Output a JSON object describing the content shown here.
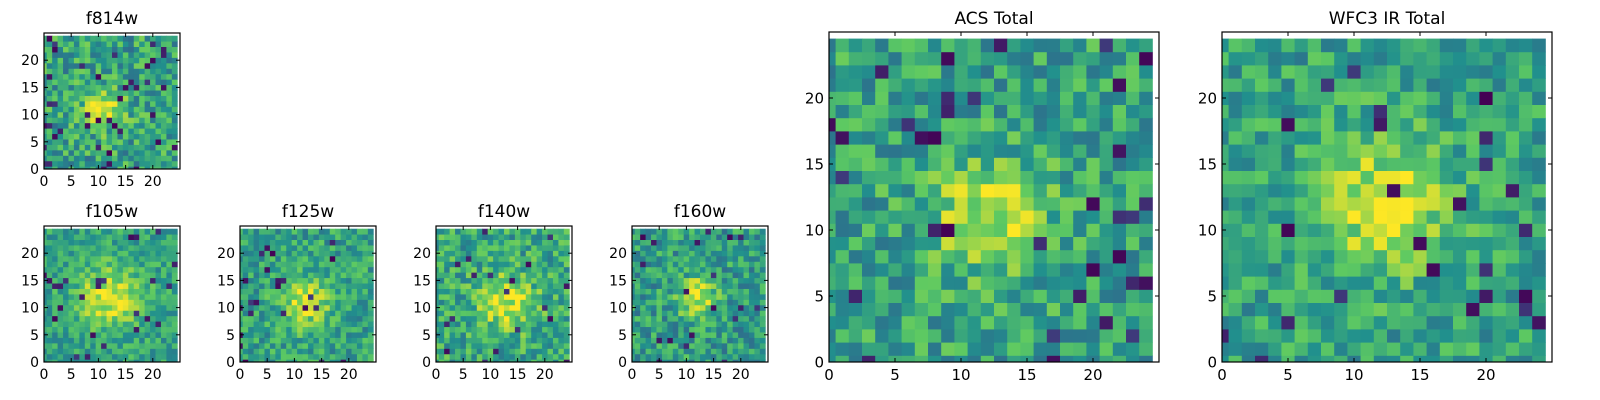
{
  "figure": {
    "colormap": "viridis",
    "colormap_stops": [
      "#440154",
      "#3b528b",
      "#21908d",
      "#5dc962",
      "#fde725"
    ]
  },
  "chart_data": [
    {
      "type": "heatmap",
      "id": "f814w",
      "title": "f814w",
      "xlabel": "",
      "ylabel": "",
      "xlim": [
        0,
        25
      ],
      "ylim": [
        0,
        25
      ],
      "grid_size": 25,
      "xticks": [
        "0",
        "5",
        "10",
        "15",
        "20"
      ],
      "yticks": [
        "0",
        "5",
        "10",
        "15",
        "20"
      ],
      "source": {
        "cx": 11,
        "cy": 11,
        "peak": 0.35,
        "sigma": 2.5,
        "base": 0.58,
        "noise": 0.22,
        "dark_freq": 0.06,
        "seed": 11
      }
    },
    {
      "type": "heatmap",
      "id": "f105w",
      "title": "f105w",
      "xlabel": "",
      "ylabel": "",
      "xlim": [
        0,
        25
      ],
      "ylim": [
        0,
        25
      ],
      "grid_size": 25,
      "xticks": [
        "0",
        "5",
        "10",
        "15",
        "20"
      ],
      "yticks": [
        "0",
        "5",
        "10",
        "15",
        "20"
      ],
      "source": {
        "cx": 12,
        "cy": 12,
        "peak": 0.38,
        "sigma": 4,
        "base": 0.58,
        "noise": 0.16,
        "dark_freq": 0.03,
        "seed": 23
      }
    },
    {
      "type": "heatmap",
      "id": "f125w",
      "title": "f125w",
      "xlabel": "",
      "ylabel": "",
      "xlim": [
        0,
        25
      ],
      "ylim": [
        0,
        25
      ],
      "grid_size": 25,
      "xticks": [
        "0",
        "5",
        "10",
        "15",
        "20"
      ],
      "yticks": [
        "0",
        "5",
        "10",
        "15",
        "20"
      ],
      "source": {
        "cx": 12,
        "cy": 11,
        "peak": 0.38,
        "sigma": 3,
        "base": 0.58,
        "noise": 0.18,
        "dark_freq": 0.04,
        "seed": 37
      }
    },
    {
      "type": "heatmap",
      "id": "f140w",
      "title": "f140w",
      "xlabel": "",
      "ylabel": "",
      "xlim": [
        0,
        25
      ],
      "ylim": [
        0,
        25
      ],
      "grid_size": 25,
      "xticks": [
        "0",
        "5",
        "10",
        "15",
        "20"
      ],
      "yticks": [
        "0",
        "5",
        "10",
        "15",
        "20"
      ],
      "source": {
        "cx": 13,
        "cy": 11,
        "peak": 0.35,
        "sigma": 3.5,
        "base": 0.6,
        "noise": 0.2,
        "dark_freq": 0.04,
        "seed": 41
      }
    },
    {
      "type": "heatmap",
      "id": "f160w",
      "title": "f160w",
      "xlabel": "",
      "ylabel": "",
      "xlim": [
        0,
        25
      ],
      "ylim": [
        0,
        25
      ],
      "grid_size": 25,
      "xticks": [
        "0",
        "5",
        "10",
        "15",
        "20"
      ],
      "yticks": [
        "0",
        "5",
        "10",
        "15",
        "20"
      ],
      "source": {
        "cx": 12,
        "cy": 12,
        "peak": 0.4,
        "sigma": 2.5,
        "base": 0.56,
        "noise": 0.2,
        "dark_freq": 0.04,
        "seed": 53
      }
    },
    {
      "type": "heatmap",
      "id": "acs_total",
      "title": "ACS Total",
      "xlabel": "",
      "ylabel": "",
      "xlim": [
        0,
        25
      ],
      "ylim": [
        0,
        25
      ],
      "grid_size": 25,
      "xticks": [
        "0",
        "5",
        "10",
        "15",
        "20"
      ],
      "yticks": [
        "0",
        "5",
        "10",
        "15",
        "20"
      ],
      "source": {
        "cx": 12,
        "cy": 11,
        "peak": 0.35,
        "sigma": 3,
        "base": 0.58,
        "noise": 0.2,
        "dark_freq": 0.05,
        "seed": 67
      }
    },
    {
      "type": "heatmap",
      "id": "wfc3_ir_total",
      "title": "WFC3 IR Total",
      "xlabel": "",
      "ylabel": "",
      "xlim": [
        0,
        25
      ],
      "ylim": [
        0,
        25
      ],
      "grid_size": 25,
      "xticks": [
        "0",
        "5",
        "10",
        "15",
        "20"
      ],
      "yticks": [
        "0",
        "5",
        "10",
        "15",
        "20"
      ],
      "source": {
        "cx": 12,
        "cy": 12,
        "peak": 0.36,
        "sigma": 3.5,
        "base": 0.58,
        "noise": 0.18,
        "dark_freq": 0.04,
        "seed": 79
      }
    }
  ]
}
